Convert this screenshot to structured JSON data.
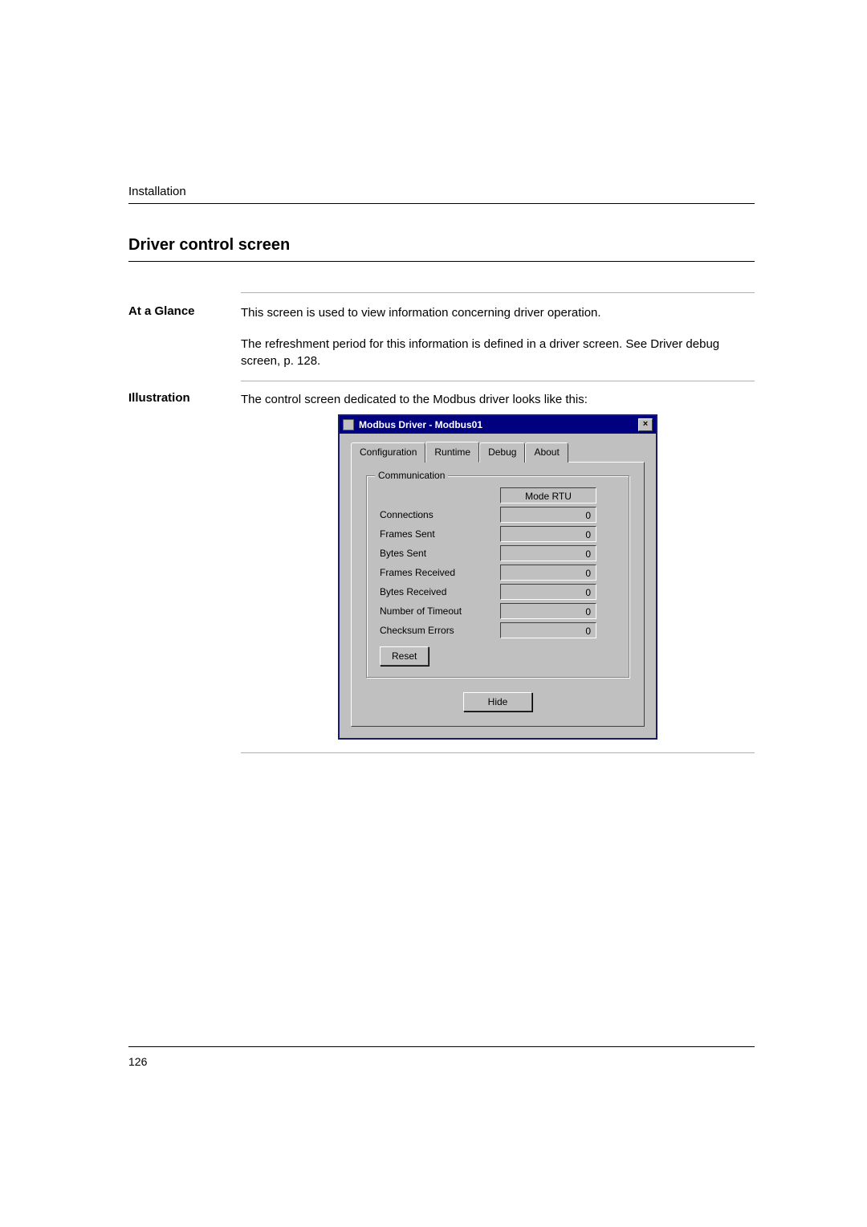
{
  "header": {
    "section": "Installation"
  },
  "title": "Driver control screen",
  "glance": {
    "label": "At a Glance",
    "p1": "This screen is used to view information concerning driver operation.",
    "p2": "The refreshment period for this information is defined in a driver screen. See Driver debug screen, p. 128."
  },
  "illustration": {
    "label": "Illustration",
    "intro": "The control screen dedicated to the Modbus driver looks like this:"
  },
  "dialog": {
    "title": "Modbus Driver - Modbus01",
    "close_glyph": "×",
    "tabs": {
      "configuration": "Configuration",
      "runtime": "Runtime",
      "debug": "Debug",
      "about": "About"
    },
    "groupbox_title": "Communication",
    "mode_value": "Mode RTU",
    "rows": {
      "connections": {
        "label": "Connections",
        "value": "0"
      },
      "frames_sent": {
        "label": "Frames Sent",
        "value": "0"
      },
      "bytes_sent": {
        "label": "Bytes Sent",
        "value": "0"
      },
      "frames_received": {
        "label": "Frames Received",
        "value": "0"
      },
      "bytes_received": {
        "label": "Bytes Received",
        "value": "0"
      },
      "timeout": {
        "label": "Number of Timeout",
        "value": "0"
      },
      "checksum": {
        "label": "Checksum Errors",
        "value": "0"
      }
    },
    "reset_label": "Reset",
    "hide_label": "Hide"
  },
  "page_number": "126",
  "colors": {
    "titlebar_bg": "#000080",
    "dialog_bg": "#c0c0c0",
    "text": "#000000"
  }
}
